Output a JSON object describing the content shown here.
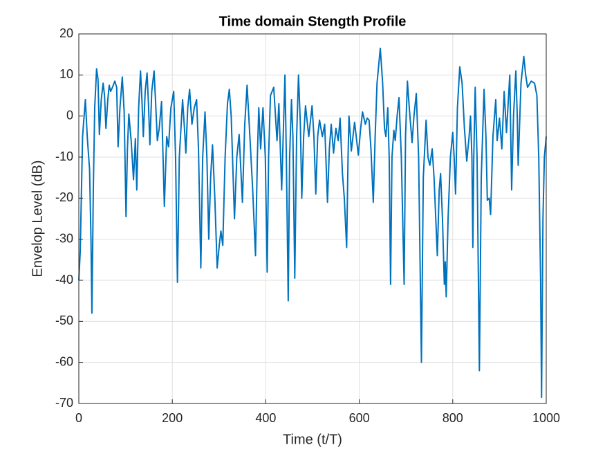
{
  "chart_data": {
    "type": "line",
    "title": "Time domain Stength Profile",
    "xlabel": "Time (t/T)",
    "ylabel": "Envelop Level (dB)",
    "x": [
      0,
      3,
      8,
      14,
      18,
      23,
      26,
      28,
      31,
      34,
      38,
      41,
      44,
      48,
      52,
      55,
      58,
      62,
      65,
      68,
      72,
      77,
      81,
      84,
      88,
      93,
      97,
      101,
      104,
      107,
      112,
      117,
      121,
      124,
      128,
      132,
      135,
      138,
      142,
      146,
      149,
      152,
      156,
      161,
      164,
      168,
      172,
      177,
      183,
      188,
      192,
      197,
      203,
      207,
      211,
      215,
      222,
      226,
      229,
      233,
      237,
      242,
      247,
      252,
      256,
      261,
      265,
      270,
      274,
      278,
      282,
      286,
      291,
      296,
      300,
      304,
      308,
      313,
      318,
      322,
      326,
      333,
      338,
      343,
      350,
      355,
      360,
      366,
      372,
      378,
      382,
      385,
      389,
      394,
      399,
      403,
      406,
      410,
      417,
      424,
      428,
      434,
      438,
      441,
      444,
      448,
      451,
      455,
      458,
      462,
      466,
      470,
      474,
      477,
      481,
      485,
      492,
      499,
      503,
      507,
      511,
      515,
      521,
      526,
      532,
      536,
      540,
      545,
      550,
      555,
      559,
      564,
      568,
      573,
      576,
      578,
      583,
      590,
      598,
      603,
      607,
      613,
      617,
      621,
      625,
      630,
      634,
      638,
      645,
      650,
      654,
      657,
      661,
      664,
      667,
      670,
      674,
      677,
      681,
      685,
      690,
      696,
      699,
      703,
      707,
      713,
      717,
      722,
      727,
      733,
      737,
      743,
      747,
      751,
      756,
      760,
      767,
      771,
      774,
      778,
      782,
      784,
      786,
      790,
      795,
      800,
      803,
      806,
      810,
      815,
      820,
      825,
      830,
      835,
      838,
      841,
      843,
      845,
      848,
      852,
      857,
      861,
      867,
      871,
      874,
      878,
      881,
      886,
      892,
      895,
      900,
      905,
      910,
      915,
      922,
      926,
      930,
      935,
      938,
      940,
      946,
      952,
      956,
      960,
      968,
      975,
      980,
      984,
      988,
      990,
      993,
      996,
      1000
    ],
    "values": [
      -40,
      -33,
      -5,
      4,
      -5,
      -13,
      -30,
      -48,
      -18,
      2,
      11.5,
      9,
      -4.5,
      4,
      8,
      5,
      -3,
      4,
      7.5,
      6,
      7,
      8.5,
      7,
      -7.5,
      2,
      9.5,
      1,
      -24.5,
      -8,
      0.5,
      -6,
      -15.5,
      -5.5,
      -18,
      2,
      11,
      4,
      -5,
      6,
      10.5,
      3,
      -7,
      6,
      11,
      4,
      -6,
      -3,
      3.5,
      -22,
      -5,
      -7.5,
      2,
      6,
      -10,
      -40.5,
      -10,
      4,
      -3,
      -9,
      2,
      6.5,
      -2,
      2,
      4,
      -8,
      -37,
      -10,
      1,
      -10,
      -30,
      -15,
      -7,
      -20,
      -37,
      -32,
      -28,
      -31.5,
      -10,
      3,
      6.5,
      0,
      -25,
      -10,
      -4.5,
      -21,
      -2,
      7.5,
      -5,
      -18,
      -34,
      -10,
      2,
      -8,
      2,
      -10,
      -38,
      -10,
      5,
      7,
      -6,
      3,
      -18,
      -2,
      10,
      -10,
      -45,
      -10,
      4,
      -5,
      -39.5,
      -5,
      10,
      -2,
      -20,
      -5,
      2.5,
      -5,
      2.5,
      -5,
      -19,
      -5,
      -1,
      -5,
      -2,
      -21,
      -8,
      -2,
      -9,
      -3,
      -6,
      -0.5,
      -14,
      -20,
      -32,
      -10,
      0,
      -8.5,
      -1.5,
      -9.5,
      -3,
      1,
      -2,
      -0.5,
      -1,
      -8,
      -21,
      -5,
      8,
      16.5,
      8,
      -3,
      -5,
      2,
      -10,
      -41,
      -10,
      -3.5,
      -6,
      0,
      4.5,
      -10,
      -41,
      -5,
      8.5,
      2,
      -6.5,
      0,
      5.5,
      -10,
      -60,
      -15,
      -1,
      -10,
      -12,
      -8,
      -15,
      -34,
      -18,
      -14,
      -25,
      -41,
      -35.5,
      -44,
      -25,
      -10,
      -4,
      -10,
      -19,
      2,
      12,
      8,
      -3,
      -11,
      -5,
      0,
      -10,
      -32,
      -10,
      7,
      -10,
      -62,
      -15,
      6.5,
      -5,
      -20.5,
      -20,
      -24,
      -5,
      4,
      -6,
      -0.5,
      -8,
      6,
      -4,
      10,
      -18,
      0,
      11,
      0,
      -12,
      8,
      14.5,
      10,
      7,
      8.5,
      8,
      5,
      -10,
      -40,
      -68.5,
      -25,
      -10,
      -5
    ],
    "color": "#0072bd",
    "xlim": [
      0,
      1000
    ],
    "xticks": [
      0,
      200,
      400,
      600,
      800,
      1000
    ],
    "ylim": [
      -70,
      20
    ],
    "yticks": [
      -70,
      -60,
      -50,
      -40,
      -30,
      -20,
      -10,
      0,
      10,
      20
    ],
    "grid": true
  }
}
